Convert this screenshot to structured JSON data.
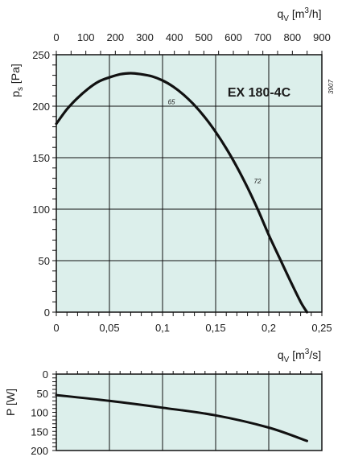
{
  "colors": {
    "plot_bg": "#dcefeb",
    "grid": "#111111",
    "curve": "#111111"
  },
  "chart_data": [
    {
      "type": "line",
      "title": "EX 180-4C",
      "code": "3907",
      "xlabel_sub": "V",
      "xlabel_base": "q",
      "xlabel_unit": "[m3/s]",
      "xlabel_unit_pre": "[m",
      "xlabel_unit_sup": "3",
      "xlabel_unit_post": "/s]",
      "ylabel_base": "p",
      "ylabel_sub": "s",
      "ylabel_unit": "[Pa]",
      "xlim": [
        0,
        0.25
      ],
      "ylim": [
        0,
        250
      ],
      "x_ticks": [
        0,
        0.05,
        0.1,
        0.15,
        0.2,
        0.25
      ],
      "x_tick_labels": [
        "0",
        "0,05",
        "0,1",
        "0,15",
        "0,2",
        "0,25"
      ],
      "y_ticks": [
        0,
        50,
        100,
        150,
        200,
        250
      ],
      "y_tick_labels": [
        "0",
        "50",
        "100",
        "150",
        "200",
        "250"
      ],
      "top_axis": {
        "label_base": "q",
        "label_sub": "V",
        "label_unit": "[m3/h]",
        "label_unit_pre": "[m",
        "label_unit_sup": "3",
        "label_unit_post": "/h]",
        "xlim": [
          0,
          900
        ],
        "ticks": [
          0,
          100,
          200,
          300,
          400,
          500,
          600,
          700,
          800,
          900
        ],
        "tick_labels": [
          "0",
          "100",
          "200",
          "300",
          "400",
          "500",
          "600",
          "700",
          "800",
          "900"
        ]
      },
      "grid": true,
      "annotations": [
        {
          "text": "65",
          "x": 0.105,
          "y": 202
        },
        {
          "text": "72",
          "x": 0.186,
          "y": 125
        }
      ],
      "series": [
        {
          "x": [
            0,
            0.01,
            0.02,
            0.03,
            0.04,
            0.05,
            0.06,
            0.07,
            0.08,
            0.09,
            0.1,
            0.11,
            0.12,
            0.13,
            0.14,
            0.15,
            0.16,
            0.17,
            0.18,
            0.19,
            0.2,
            0.21,
            0.22,
            0.23,
            0.236
          ],
          "y": [
            183,
            197,
            208,
            217,
            224,
            228,
            231,
            232,
            231,
            229,
            225,
            219,
            211,
            201,
            189,
            175,
            159,
            141,
            121,
            99,
            75,
            53,
            31,
            10,
            0
          ]
        }
      ]
    },
    {
      "type": "line",
      "ylabel_base": "P",
      "ylabel_unit": "[W]",
      "xlim": [
        0,
        0.25
      ],
      "ylim": [
        0,
        200
      ],
      "y_inverted": true,
      "y_ticks": [
        0,
        50,
        100,
        150,
        200
      ],
      "y_tick_labels": [
        "0",
        "50",
        "100",
        "150",
        "200"
      ],
      "grid": true,
      "series": [
        {
          "x": [
            0,
            0.05,
            0.1,
            0.15,
            0.2,
            0.236
          ],
          "y": [
            55,
            70,
            88,
            108,
            140,
            175
          ]
        }
      ]
    }
  ]
}
